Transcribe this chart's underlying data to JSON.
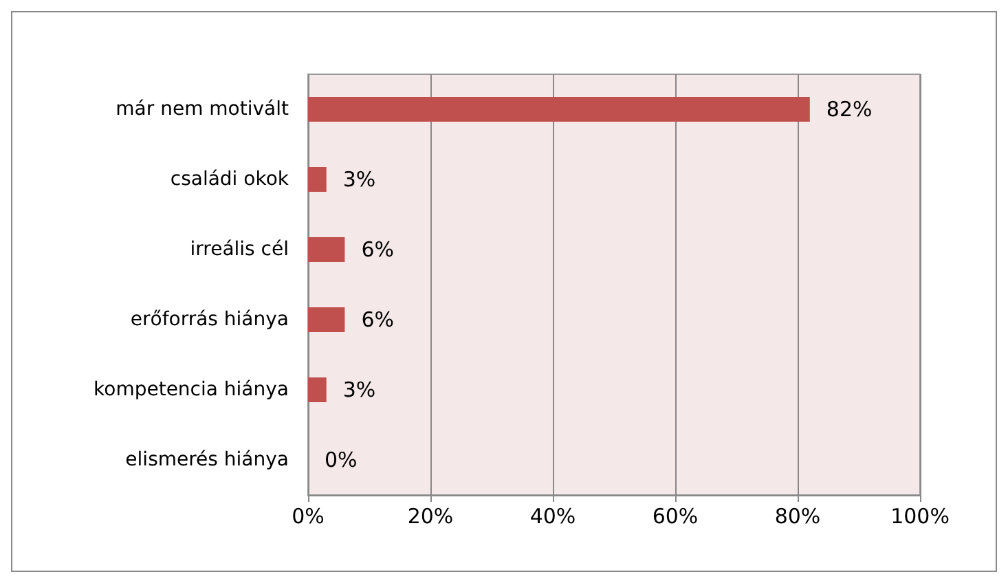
{
  "chart_data": {
    "type": "bar",
    "orientation": "horizontal",
    "categories": [
      "már nem motivált",
      "családi okok",
      "irreális cél",
      "erőforrás hiánya",
      "kompetencia hiánya",
      "elismerés hiánya"
    ],
    "values": [
      82,
      3,
      6,
      6,
      3,
      0
    ],
    "value_labels": [
      "82%",
      "3%",
      "6%",
      "6%",
      "3%",
      "0%"
    ],
    "color": "#c0504d",
    "xlim": [
      0,
      100
    ],
    "xticks": [
      {
        "value": 0,
        "label": "0%"
      },
      {
        "value": 20,
        "label": "20%"
      },
      {
        "value": 40,
        "label": "40%"
      },
      {
        "value": 60,
        "label": "60%"
      },
      {
        "value": 80,
        "label": "80%"
      },
      {
        "value": 100,
        "label": "100%"
      }
    ],
    "grid": "x"
  }
}
